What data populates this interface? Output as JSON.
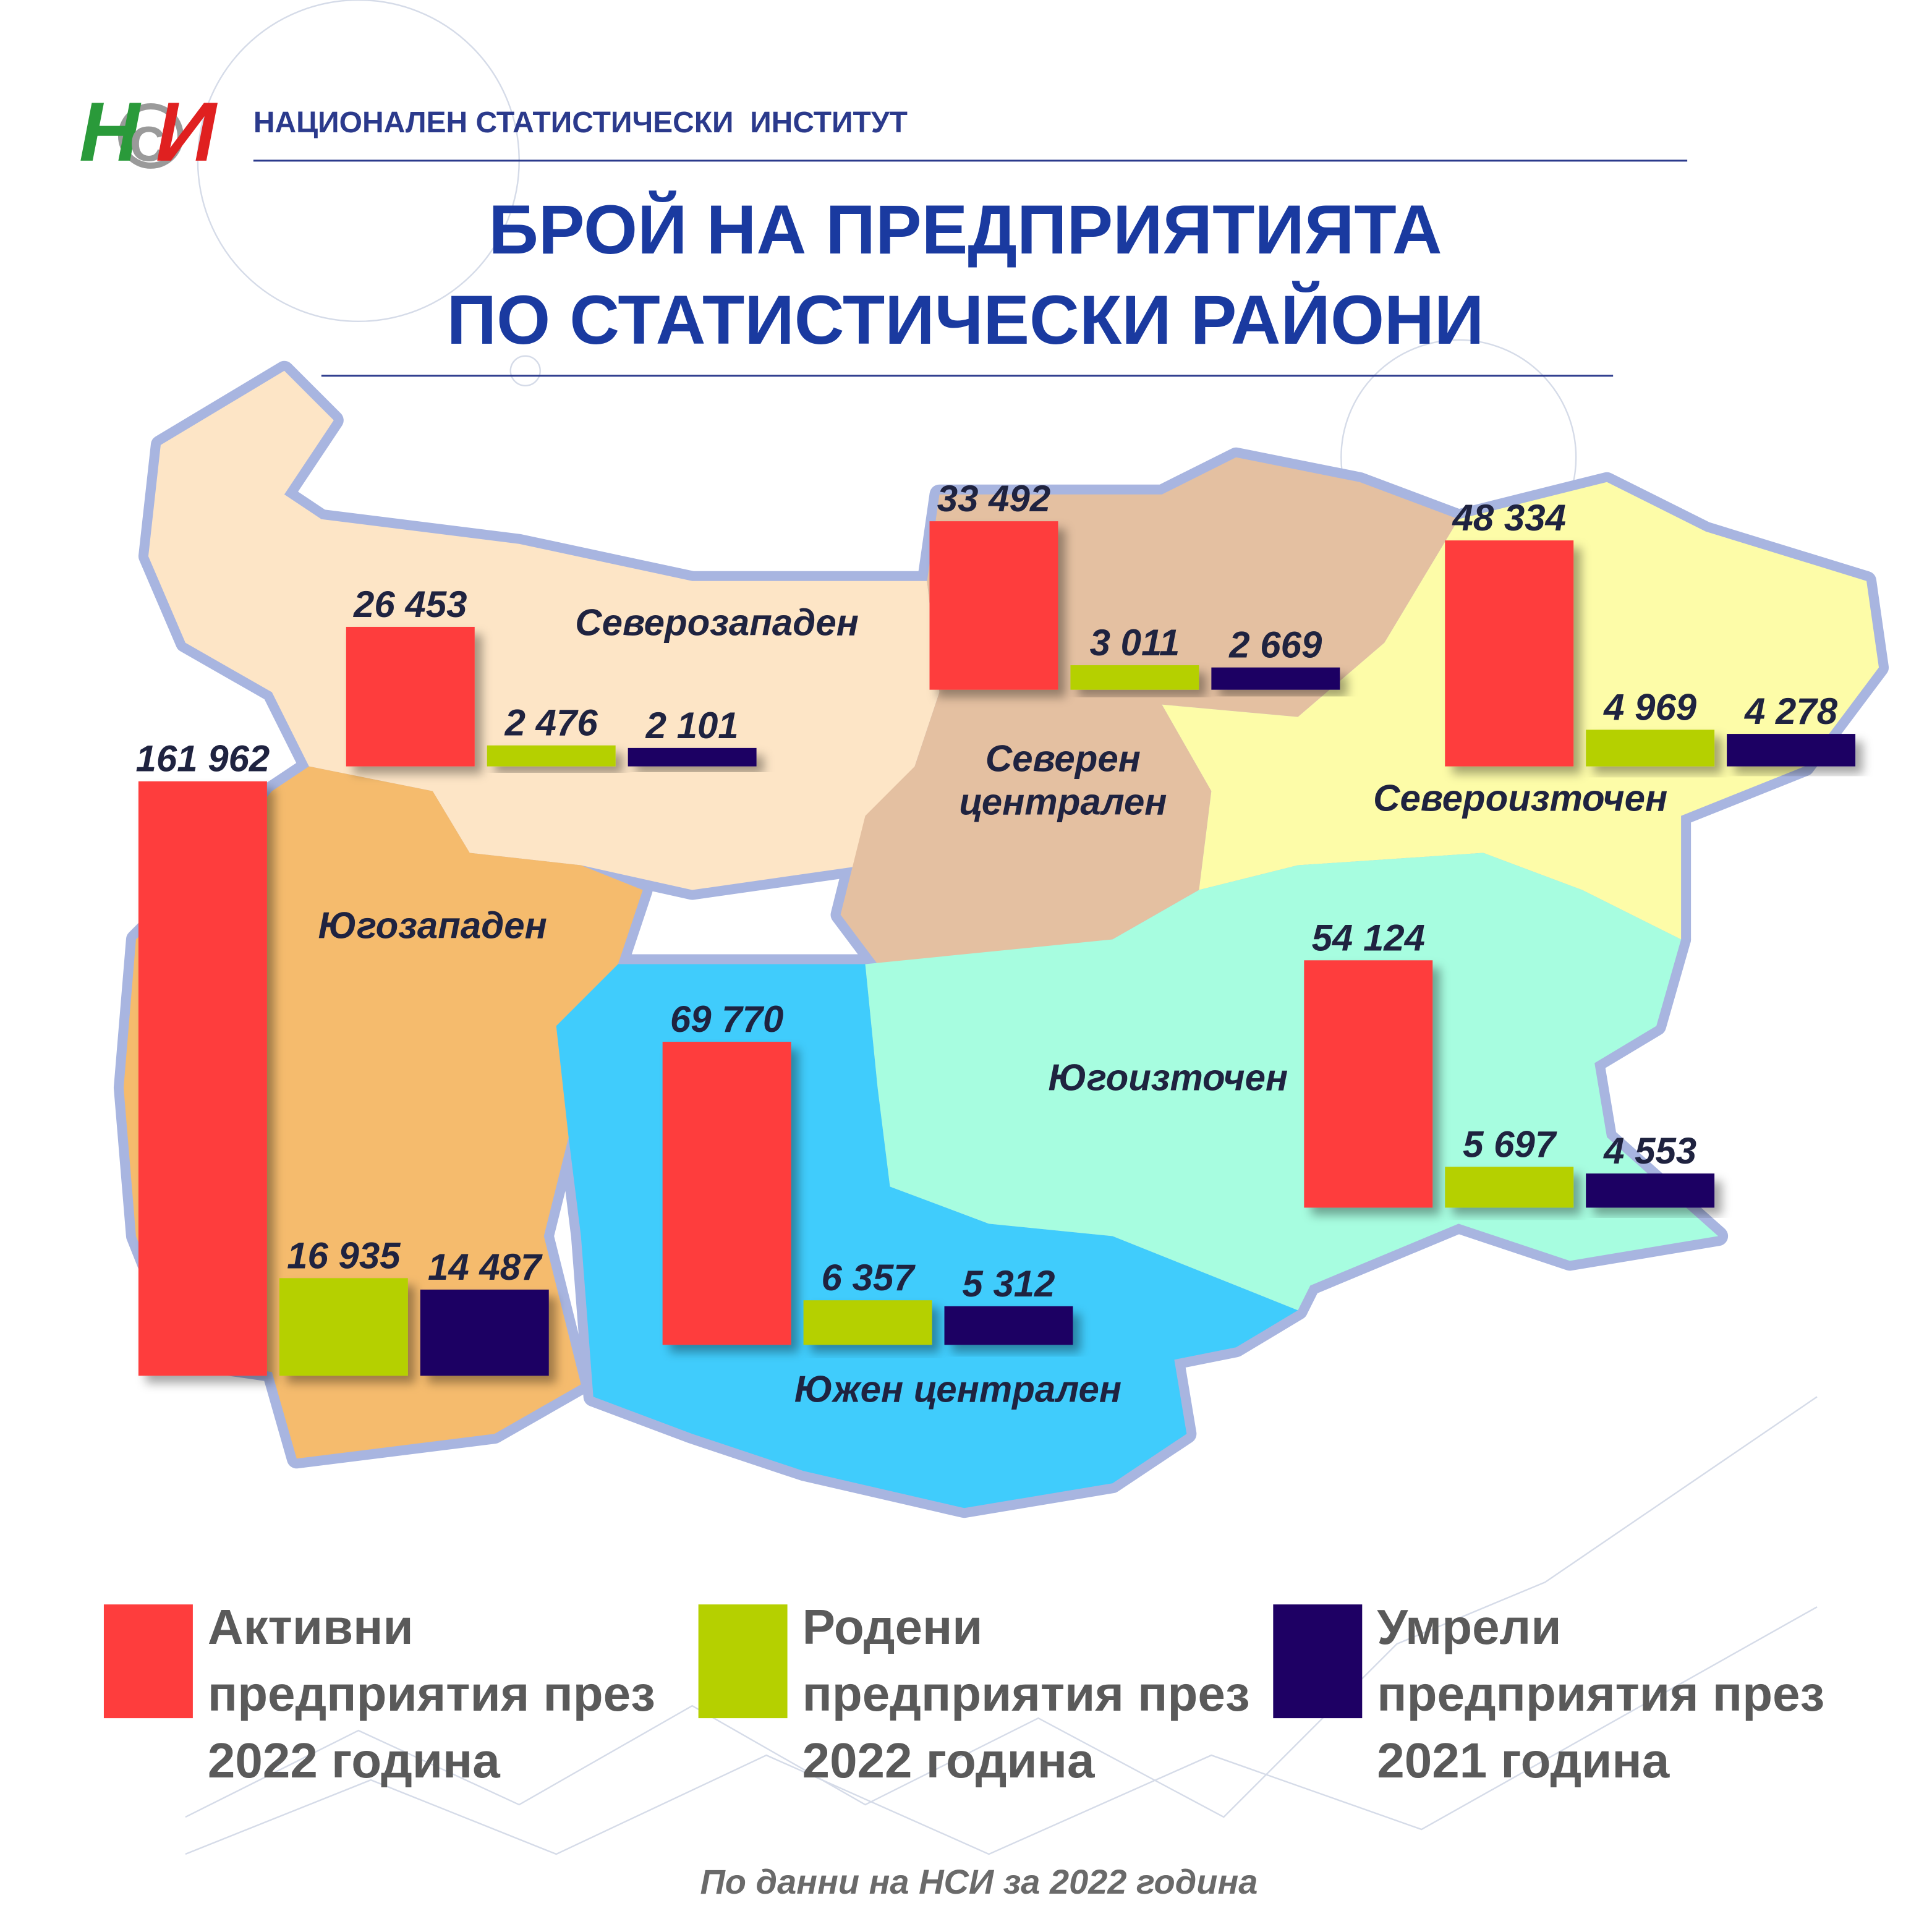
{
  "header": {
    "logo": [
      "Н",
      "С",
      "И"
    ],
    "organization": "НАЦИОНАЛЕН СТАТИСТИЧЕСКИ  ИНСТИТУТ"
  },
  "chart_data": {
    "type": "bar",
    "title": [
      "БРОЙ НА ПРЕДПРИЯТИЯТА",
      "ПО СТАТИСТИЧЕСКИ РАЙОНИ"
    ],
    "categories": [
      "Северозападен",
      "Северен централен",
      "Североизточен",
      "Югозападен",
      "Южен централен",
      "Югоизточен"
    ],
    "series": [
      {
        "name": "Активни предприятия през 2022 година",
        "color": "#fe3d3d",
        "values": [
          26453,
          33492,
          48334,
          161962,
          69770,
          54124
        ],
        "value_labels": [
          "26 453",
          "33 492",
          "48 334",
          "161 962",
          "69 770",
          "54 124"
        ]
      },
      {
        "name": "Родени предприятия през 2022 година",
        "color": "#b5d000",
        "values": [
          2476,
          3011,
          4969,
          16935,
          6357,
          5697
        ],
        "value_labels": [
          "2 476",
          "3 011",
          "4 969",
          "16 935",
          "6 357",
          "5 697"
        ]
      },
      {
        "name": "Умрели предприятия през 2021 година",
        "color": "#1e0064",
        "values": [
          2101,
          2669,
          4278,
          14487,
          5312,
          4553
        ],
        "value_labels": [
          "2 101",
          "2 669",
          "4 278",
          "14 487",
          "5 312",
          "4 553"
        ]
      }
    ]
  },
  "footer": {
    "source": "По данни на НСИ за 2022 година"
  }
}
